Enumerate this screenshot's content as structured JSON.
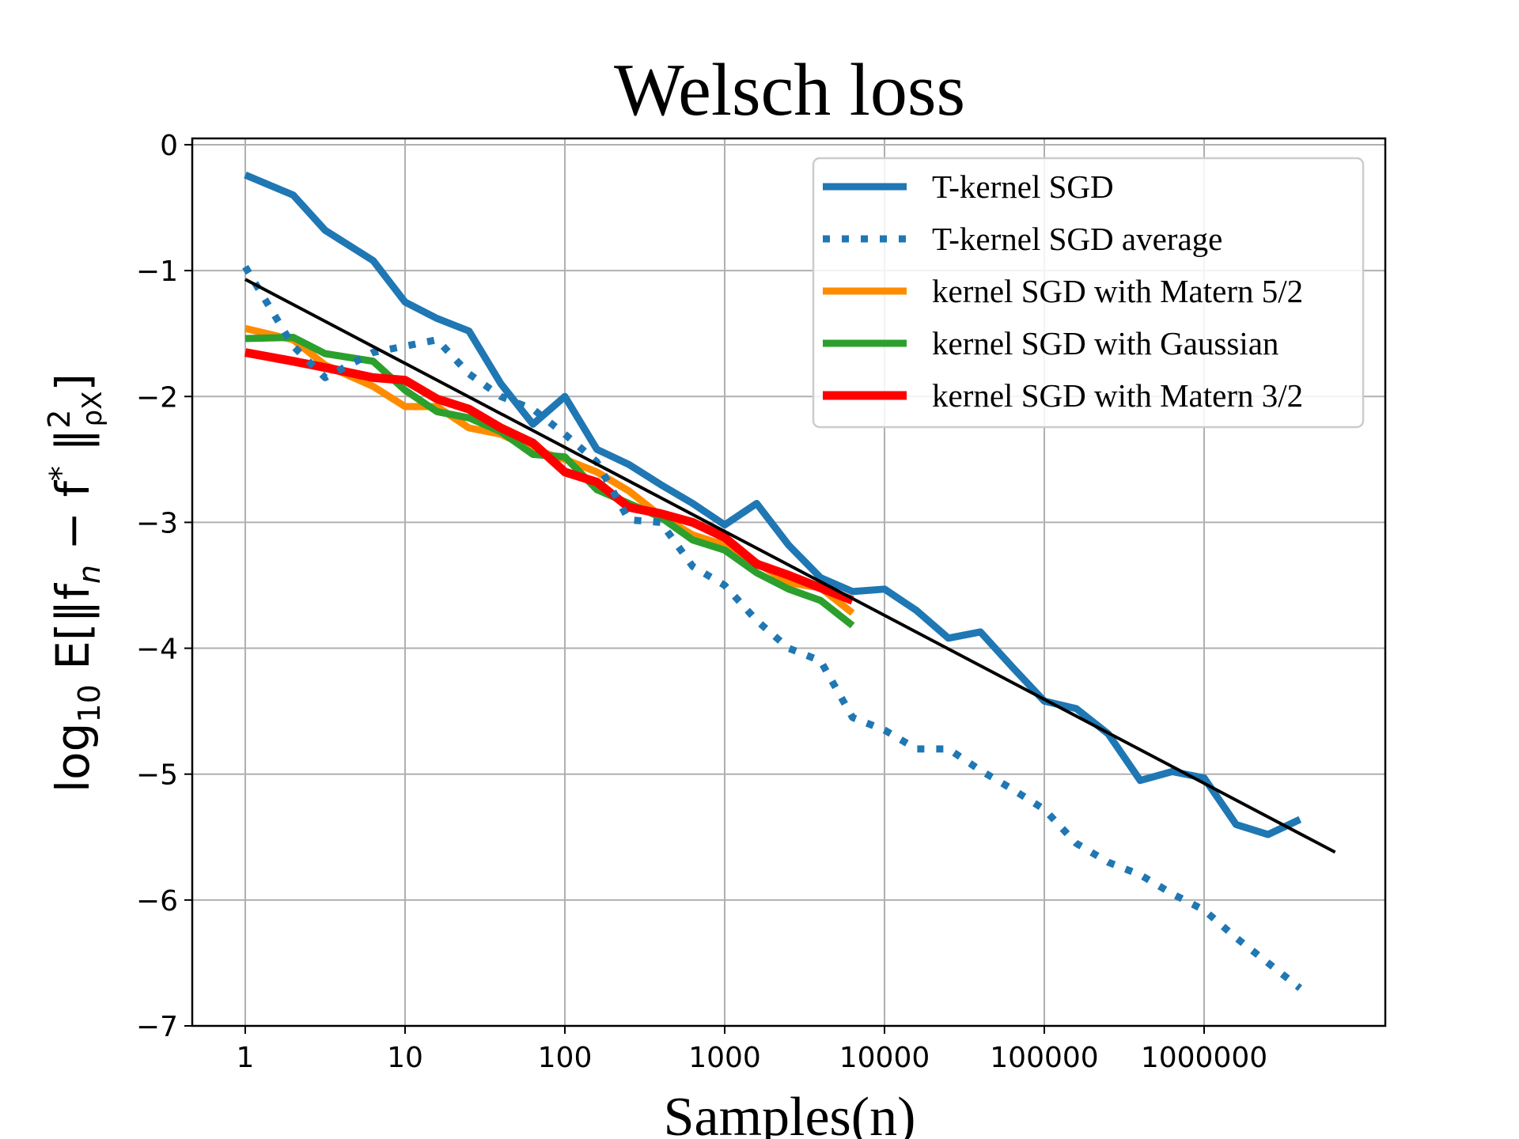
{
  "chart_data": {
    "type": "line",
    "title": "Welsch loss",
    "xlabel": "Samples(n)",
    "ylabel": "log10 E[‖f_n − f*‖²_ρX]",
    "xscale": "log10",
    "xlim_log10": [
      -0.33,
      7.15
    ],
    "ylim": [
      -7,
      0.05
    ],
    "grid": true,
    "legend_position": "top-right",
    "xticks": [
      {
        "log10": 0,
        "label": "1"
      },
      {
        "log10": 1,
        "label": "10"
      },
      {
        "log10": 2,
        "label": "100"
      },
      {
        "log10": 3,
        "label": "1000"
      },
      {
        "log10": 4,
        "label": "10000"
      },
      {
        "log10": 5,
        "label": "100000"
      },
      {
        "log10": 6,
        "label": "1000000"
      }
    ],
    "yticks": [
      {
        "value": 0,
        "label": "0"
      },
      {
        "value": -1,
        "label": "−1"
      },
      {
        "value": -2,
        "label": "−2"
      },
      {
        "value": -3,
        "label": "−3"
      },
      {
        "value": -4,
        "label": "−4"
      },
      {
        "value": -5,
        "label": "−5"
      },
      {
        "value": -6,
        "label": "−6"
      },
      {
        "value": -7,
        "label": "−7"
      }
    ],
    "series": [
      {
        "name": "T-kernel SGD",
        "color": "#1f77b4",
        "style": "solid",
        "x_log10": [
          0,
          0.3,
          0.5,
          0.8,
          1.0,
          1.2,
          1.4,
          1.6,
          1.8,
          2.0,
          2.2,
          2.4,
          2.6,
          2.8,
          3.0,
          3.2,
          3.4,
          3.6,
          3.8,
          4.0,
          4.2,
          4.4,
          4.6,
          4.8,
          5.0,
          5.2,
          5.4,
          5.6,
          5.8,
          6.0,
          6.2,
          6.4,
          6.6
        ],
        "values": [
          -0.24,
          -0.4,
          -0.68,
          -0.92,
          -1.25,
          -1.38,
          -1.48,
          -1.9,
          -2.22,
          -2.0,
          -2.42,
          -2.54,
          -2.7,
          -2.85,
          -3.02,
          -2.85,
          -3.18,
          -3.44,
          -3.55,
          -3.53,
          -3.7,
          -3.92,
          -3.87,
          -4.15,
          -4.42,
          -4.48,
          -4.68,
          -5.05,
          -4.98,
          -5.03,
          -5.4,
          -5.48,
          -5.36
        ]
      },
      {
        "name": "T-kernel SGD average",
        "color": "#1f77b4",
        "style": "dotted",
        "x_log10": [
          0,
          0.3,
          0.5,
          0.8,
          1.0,
          1.2,
          1.4,
          1.6,
          1.8,
          2.0,
          2.2,
          2.4,
          2.6,
          2.8,
          3.0,
          3.2,
          3.4,
          3.6,
          3.8,
          4.0,
          4.2,
          4.4,
          4.6,
          4.8,
          5.0,
          5.2,
          5.4,
          5.6,
          5.8,
          6.0,
          6.2,
          6.4,
          6.6
        ],
        "values": [
          -0.97,
          -1.6,
          -1.85,
          -1.65,
          -1.6,
          -1.55,
          -1.82,
          -2.0,
          -2.1,
          -2.3,
          -2.52,
          -2.98,
          -3.0,
          -3.35,
          -3.5,
          -3.78,
          -4.0,
          -4.1,
          -4.55,
          -4.65,
          -4.8,
          -4.8,
          -4.97,
          -5.12,
          -5.28,
          -5.55,
          -5.7,
          -5.8,
          -5.95,
          -6.08,
          -6.3,
          -6.5,
          -6.7
        ]
      },
      {
        "name": "kernel SGD with Matern 5/2",
        "color": "#ff8c00",
        "style": "solid",
        "x_log10": [
          0,
          0.3,
          0.5,
          0.8,
          1.0,
          1.2,
          1.4,
          1.6,
          1.8,
          2.0,
          2.2,
          2.4,
          2.6,
          2.8,
          3.0,
          3.2,
          3.4,
          3.6,
          3.8
        ],
        "values": [
          -1.46,
          -1.55,
          -1.75,
          -1.92,
          -2.08,
          -2.08,
          -2.25,
          -2.3,
          -2.42,
          -2.5,
          -2.6,
          -2.75,
          -2.95,
          -3.1,
          -3.18,
          -3.32,
          -3.48,
          -3.52,
          -3.72
        ]
      },
      {
        "name": "kernel SGD with Gaussian",
        "color": "#2ca02c",
        "style": "solid",
        "x_log10": [
          0,
          0.3,
          0.5,
          0.8,
          1.0,
          1.2,
          1.4,
          1.6,
          1.8,
          2.0,
          2.2,
          2.4,
          2.6,
          2.8,
          3.0,
          3.2,
          3.4,
          3.6,
          3.8
        ],
        "values": [
          -1.54,
          -1.53,
          -1.66,
          -1.72,
          -1.95,
          -2.12,
          -2.17,
          -2.28,
          -2.46,
          -2.48,
          -2.74,
          -2.85,
          -2.96,
          -3.14,
          -3.22,
          -3.4,
          -3.53,
          -3.62,
          -3.82
        ]
      },
      {
        "name": "kernel SGD with Matern 3/2",
        "color": "#ff0000",
        "style": "solid",
        "x_log10": [
          0,
          0.3,
          0.5,
          0.8,
          1.0,
          1.2,
          1.4,
          1.6,
          1.8,
          2.0,
          2.2,
          2.4,
          2.6,
          2.8,
          3.0,
          3.2,
          3.4,
          3.6,
          3.8
        ],
        "values": [
          -1.65,
          -1.72,
          -1.77,
          -1.85,
          -1.87,
          -2.02,
          -2.1,
          -2.25,
          -2.37,
          -2.6,
          -2.68,
          -2.88,
          -2.93,
          -3.0,
          -3.12,
          -3.33,
          -3.42,
          -3.52,
          -3.62
        ]
      },
      {
        "name": "reference fit",
        "color": "#000000",
        "style": "solid",
        "legend": false,
        "x_log10": [
          0,
          6.82
        ],
        "values": [
          -1.07,
          -5.62
        ]
      }
    ]
  }
}
